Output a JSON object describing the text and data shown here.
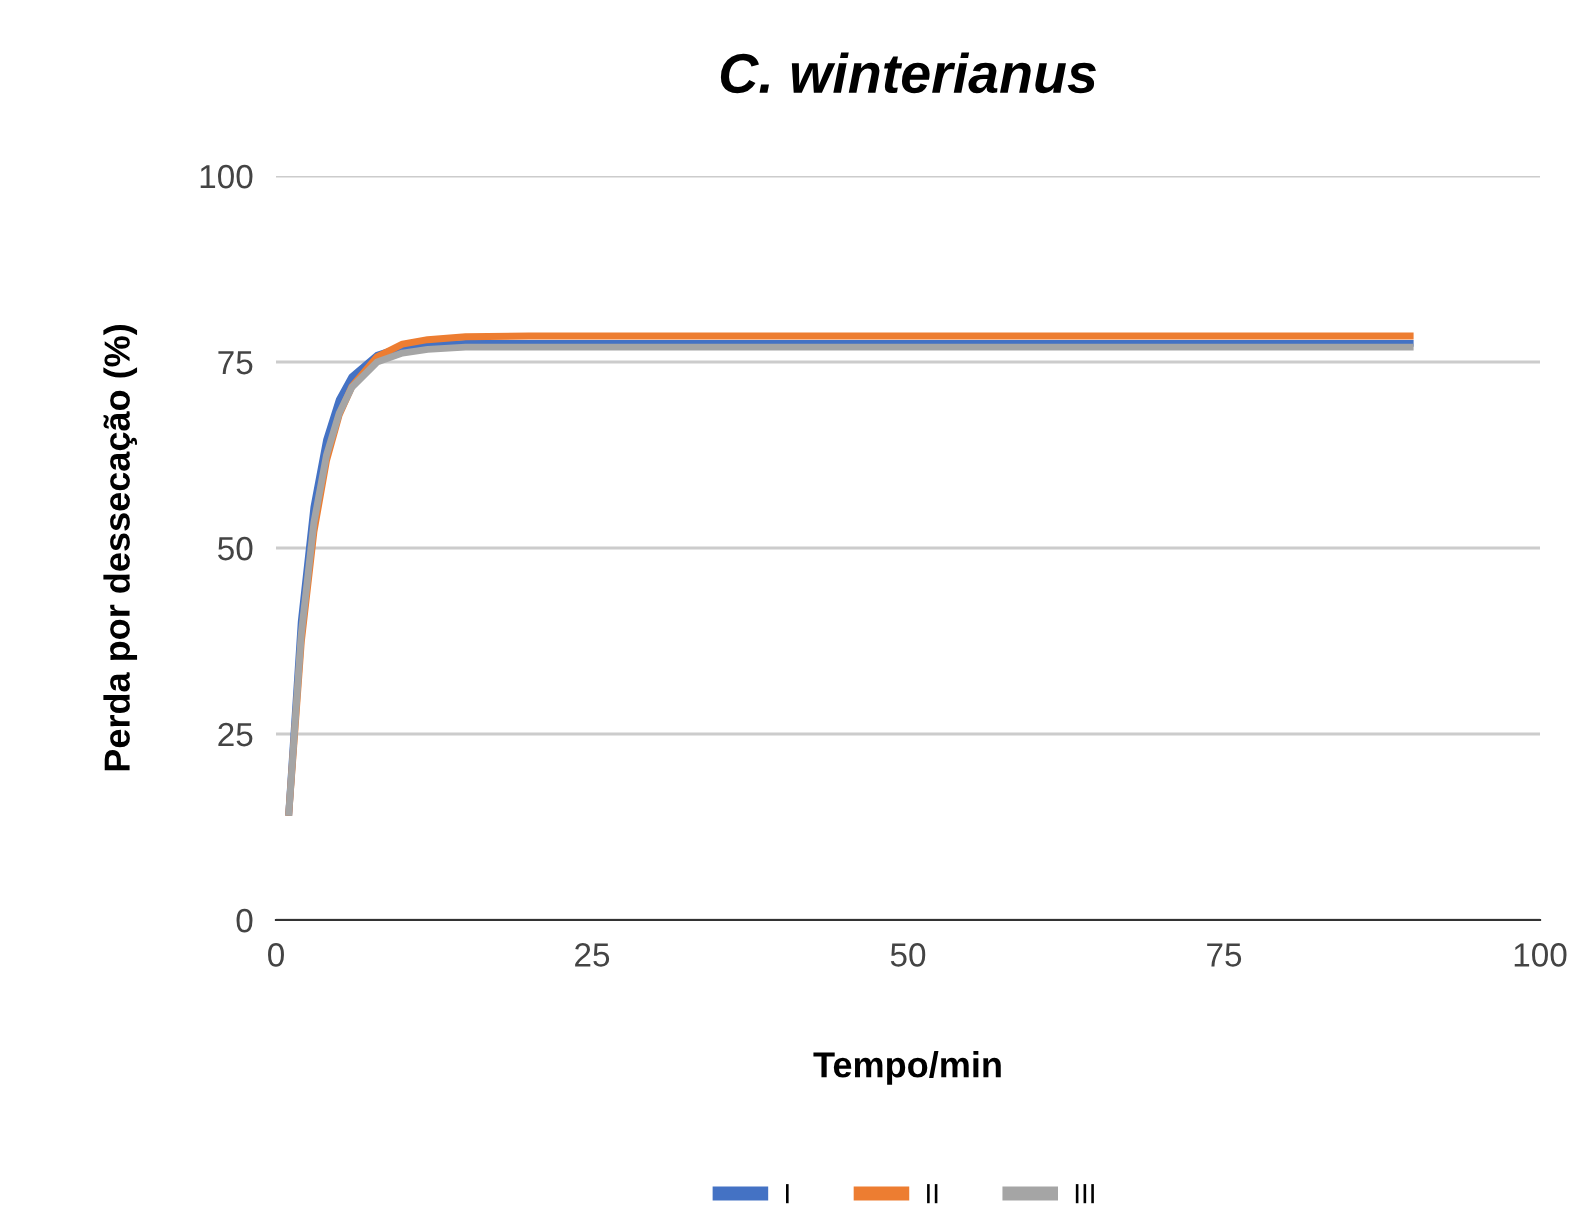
{
  "chart_data": {
    "type": "line",
    "title": "C. winterianus",
    "xlabel": "Tempo/min",
    "ylabel": "Perda por dessecação (%)",
    "x": [
      1,
      2,
      3,
      4,
      5,
      6,
      8,
      10,
      12,
      15,
      20,
      30,
      40,
      50,
      60,
      70,
      80,
      90
    ],
    "series": [
      {
        "name": "I",
        "color": "#4472c4",
        "values": [
          14,
          40.1,
          55.5,
          64.5,
          69.9,
          73,
          75.9,
          77,
          77.3,
          77.5,
          77.5,
          77.5,
          77.5,
          77.5,
          77.5,
          77.5,
          77.5,
          77.5
        ]
      },
      {
        "name": "II",
        "color": "#ed7d31",
        "values": [
          14,
          37.4,
          52.2,
          61.8,
          67.9,
          71.7,
          75.7,
          77.4,
          78,
          78.4,
          78.5,
          78.5,
          78.5,
          78.5,
          78.5,
          78.5,
          78.5,
          78.5
        ]
      },
      {
        "name": "III",
        "color": "#a5a5a5",
        "values": [
          14,
          38.4,
          53.4,
          62.5,
          68.1,
          71.6,
          75,
          76.2,
          76.7,
          77,
          77,
          77,
          77,
          77,
          77,
          77,
          77,
          77
        ]
      }
    ],
    "xlim": [
      0,
      100
    ],
    "xticks": [
      0,
      25,
      50,
      75,
      100
    ],
    "ylim": [
      0,
      100
    ],
    "yticks": [
      0,
      25,
      50,
      75,
      100
    ],
    "grid": "y",
    "legend": "bottom",
    "marker": "none",
    "line_style": "solid"
  }
}
